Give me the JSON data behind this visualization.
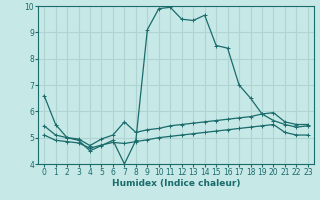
{
  "xlabel": "Humidex (Indice chaleur)",
  "background_color": "#c6e8e6",
  "grid_color": "#b0d4d2",
  "line_color": "#1a6b6b",
  "xlim": [
    -0.5,
    23.5
  ],
  "ylim": [
    4,
    10
  ],
  "yticks": [
    4,
    5,
    6,
    7,
    8,
    9,
    10
  ],
  "xticks": [
    0,
    1,
    2,
    3,
    4,
    5,
    6,
    7,
    8,
    9,
    10,
    11,
    12,
    13,
    14,
    15,
    16,
    17,
    18,
    19,
    20,
    21,
    22,
    23
  ],
  "series1_x": [
    0,
    1,
    2,
    3,
    4,
    5,
    6,
    7,
    8,
    9,
    10,
    11,
    12,
    13,
    14,
    15,
    16,
    17,
    18,
    19,
    20,
    21,
    22,
    23
  ],
  "series1_y": [
    6.6,
    5.5,
    5.0,
    4.9,
    4.5,
    4.7,
    4.9,
    4.0,
    4.9,
    9.1,
    9.9,
    9.95,
    9.5,
    9.45,
    9.65,
    8.5,
    8.4,
    7.0,
    6.5,
    5.9,
    5.65,
    5.5,
    5.4,
    5.45
  ],
  "series2_x": [
    0,
    1,
    2,
    3,
    4,
    5,
    6,
    7,
    8,
    9,
    10,
    11,
    12,
    13,
    14,
    15,
    16,
    17,
    18,
    19,
    20,
    21,
    22,
    23
  ],
  "series2_y": [
    5.45,
    5.1,
    5.0,
    4.95,
    4.7,
    4.95,
    5.1,
    5.6,
    5.2,
    5.3,
    5.35,
    5.45,
    5.5,
    5.55,
    5.6,
    5.65,
    5.7,
    5.75,
    5.8,
    5.9,
    5.95,
    5.6,
    5.5,
    5.5
  ],
  "series3_x": [
    0,
    1,
    2,
    3,
    4,
    5,
    6,
    7,
    8,
    9,
    10,
    11,
    12,
    13,
    14,
    15,
    16,
    17,
    18,
    19,
    20,
    21,
    22,
    23
  ],
  "series3_y": [
    5.1,
    4.9,
    4.85,
    4.8,
    4.6,
    4.72,
    4.82,
    4.78,
    4.85,
    4.92,
    5.0,
    5.05,
    5.1,
    5.15,
    5.2,
    5.25,
    5.3,
    5.35,
    5.4,
    5.45,
    5.5,
    5.2,
    5.1,
    5.1
  ],
  "xlabel_fontsize": 6.5,
  "tick_labelsize": 5.5
}
